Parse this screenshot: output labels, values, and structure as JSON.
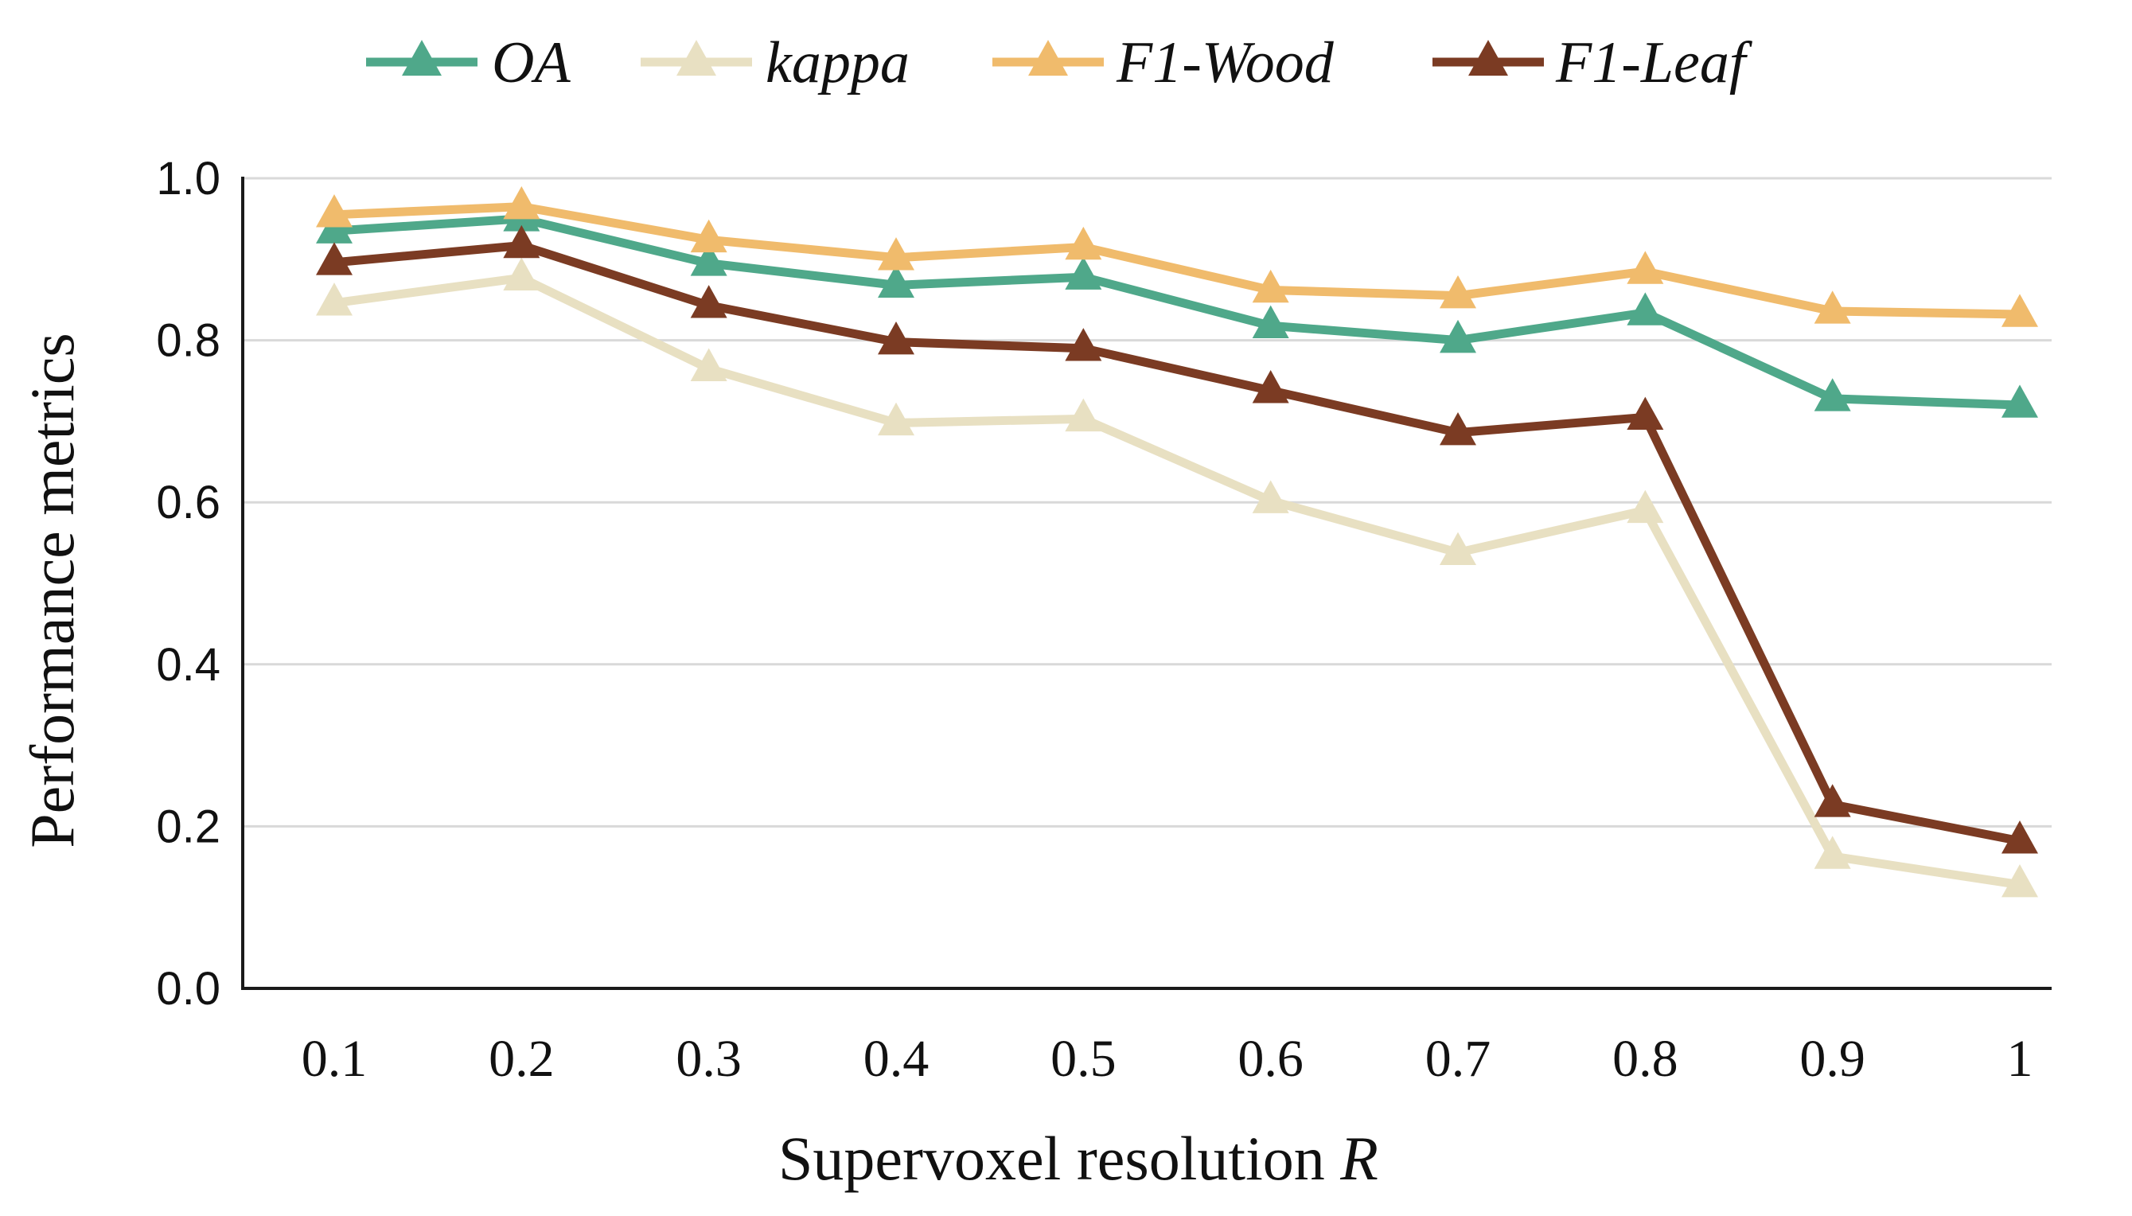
{
  "chart_data": {
    "type": "line",
    "title": "",
    "xlabel": "Supervoxel resolution",
    "xlabel_var": "R",
    "ylabel": "Performance metrics",
    "categories": [
      "0.1",
      "0.2",
      "0.3",
      "0.4",
      "0.5",
      "0.6",
      "0.7",
      "0.8",
      "0.9",
      "1"
    ],
    "ylim": [
      0.0,
      1.0
    ],
    "yticks": [
      "0.0",
      "0.2",
      "0.4",
      "0.6",
      "0.8",
      "1.0"
    ],
    "ytick_values": [
      0.0,
      0.2,
      0.4,
      0.6,
      0.8,
      1.0
    ],
    "grid": true,
    "legend_position": "top",
    "marker": "triangle",
    "series": [
      {
        "name": "OA",
        "color": "#4fa88a",
        "values": [
          0.935,
          0.95,
          0.895,
          0.868,
          0.878,
          0.818,
          0.8,
          0.834,
          0.728,
          0.72
        ]
      },
      {
        "name": "kappa",
        "color": "#e8e0c2",
        "values": [
          0.846,
          0.877,
          0.765,
          0.698,
          0.703,
          0.602,
          0.538,
          0.59,
          0.163,
          0.128
        ]
      },
      {
        "name": "F1-Wood",
        "color": "#f0bb6c",
        "values": [
          0.955,
          0.965,
          0.924,
          0.902,
          0.915,
          0.862,
          0.855,
          0.885,
          0.836,
          0.832
        ]
      },
      {
        "name": "F1-Leaf",
        "color": "#7b3b23",
        "values": [
          0.896,
          0.917,
          0.843,
          0.798,
          0.79,
          0.738,
          0.686,
          0.705,
          0.227,
          0.182
        ]
      }
    ]
  }
}
